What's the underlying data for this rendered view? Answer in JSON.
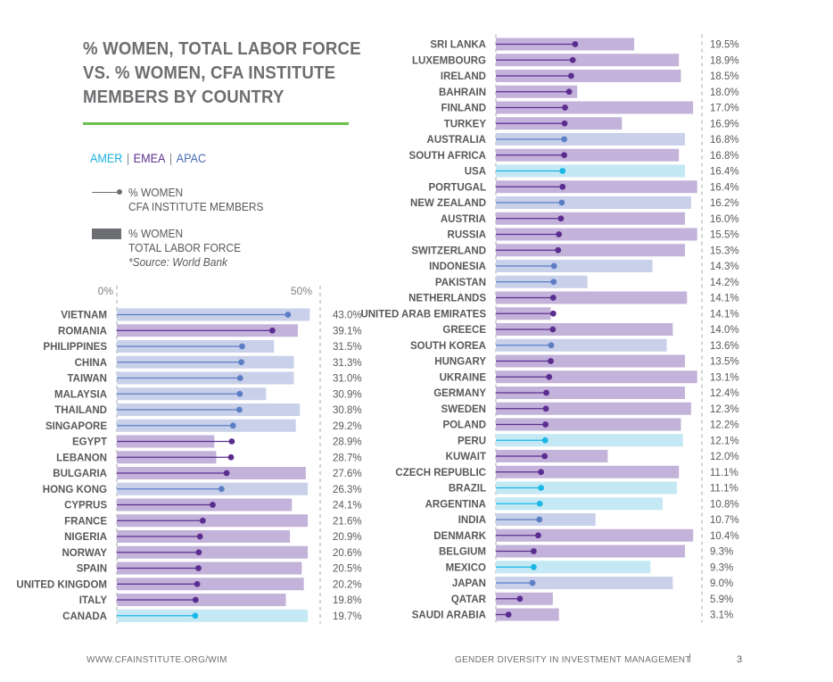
{
  "header": {
    "title_lines": [
      "% WOMEN, TOTAL LABOR FORCE",
      "VS. % WOMEN, CFA INSTITUTE",
      "MEMBERS BY COUNTRY"
    ]
  },
  "regions": {
    "items": [
      {
        "label": "AMER",
        "color": "#1bb0dd"
      },
      {
        "label": "EMEA",
        "color": "#5c2d91"
      },
      {
        "label": "APAC",
        "color": "#4a6cb3"
      }
    ],
    "separator": "|"
  },
  "legend": {
    "members_line1": "% WOMEN",
    "members_line2": "CFA INSTITUTE MEMBERS",
    "labor_line1": "% WOMEN",
    "labor_line2": "TOTAL LABOR FORCE",
    "labor_source": "*Source: World Bank"
  },
  "colors": {
    "AMER": {
      "bar": "#c4e8f4",
      "line": "#1bb7e6"
    },
    "EMEA": {
      "bar": "#c3b2d9",
      "line": "#5c2d91"
    },
    "APAC": {
      "bar": "#c8d0ea",
      "line": "#5b7ec4"
    }
  },
  "chart_data": {
    "type": "bar",
    "title": "% WOMEN, TOTAL LABOR FORCE VS. % WOMEN, CFA INSTITUTE MEMBERS BY COUNTRY",
    "xlabel": "",
    "ylabel": "",
    "x_ticks": [
      "0%",
      "50%"
    ],
    "xlim": [
      0,
      50
    ],
    "grid": false,
    "legend_position": "top-left",
    "series_names": [
      "% Women CFA Institute Members (dot)",
      "% Women Total Labor Force (bar)"
    ],
    "panels": [
      {
        "countries": [
          {
            "name": "VIETNAM",
            "region": "APAC",
            "members": 43.0,
            "labor": 48.5
          },
          {
            "name": "ROMANIA",
            "region": "EMEA",
            "members": 39.1,
            "labor": 45.5
          },
          {
            "name": "PHILIPPINES",
            "region": "APAC",
            "members": 31.5,
            "labor": 39.5
          },
          {
            "name": "CHINA",
            "region": "APAC",
            "members": 31.3,
            "labor": 44.5
          },
          {
            "name": "TAIWAN",
            "region": "APAC",
            "members": 31.0,
            "labor": 44.5
          },
          {
            "name": "MALAYSIA",
            "region": "APAC",
            "members": 30.9,
            "labor": 37.5
          },
          {
            "name": "THAILAND",
            "region": "APAC",
            "members": 30.8,
            "labor": 46.0
          },
          {
            "name": "SINGAPORE",
            "region": "APAC",
            "members": 29.2,
            "labor": 45.0
          },
          {
            "name": "EGYPT",
            "region": "EMEA",
            "members": 28.9,
            "labor": 24.5
          },
          {
            "name": "LEBANON",
            "region": "EMEA",
            "members": 28.7,
            "labor": 25.0
          },
          {
            "name": "BULGARIA",
            "region": "EMEA",
            "members": 27.6,
            "labor": 47.5
          },
          {
            "name": "HONG KONG",
            "region": "APAC",
            "members": 26.3,
            "labor": 48.0
          },
          {
            "name": "CYPRUS",
            "region": "EMEA",
            "members": 24.1,
            "labor": 44.0
          },
          {
            "name": "FRANCE",
            "region": "EMEA",
            "members": 21.6,
            "labor": 48.0
          },
          {
            "name": "NIGERIA",
            "region": "EMEA",
            "members": 20.9,
            "labor": 43.5
          },
          {
            "name": "NORWAY",
            "region": "EMEA",
            "members": 20.6,
            "labor": 48.0
          },
          {
            "name": "SPAIN",
            "region": "EMEA",
            "members": 20.5,
            "labor": 46.5
          },
          {
            "name": "UNITED KINGDOM",
            "region": "EMEA",
            "members": 20.2,
            "labor": 47.0
          },
          {
            "name": "ITALY",
            "region": "EMEA",
            "members": 19.8,
            "labor": 42.5
          },
          {
            "name": "CANADA",
            "region": "AMER",
            "members": 19.7,
            "labor": 48.0
          }
        ]
      },
      {
        "countries": [
          {
            "name": "SRI LANKA",
            "region": "EMEA",
            "members": 19.5,
            "labor": 34.0
          },
          {
            "name": "LUXEMBOURG",
            "region": "EMEA",
            "members": 18.9,
            "labor": 45.0
          },
          {
            "name": "IRELAND",
            "region": "EMEA",
            "members": 18.5,
            "labor": 45.5
          },
          {
            "name": "BAHRAIN",
            "region": "EMEA",
            "members": 18.0,
            "labor": 20.0
          },
          {
            "name": "FINLAND",
            "region": "EMEA",
            "members": 17.0,
            "labor": 48.5
          },
          {
            "name": "TURKEY",
            "region": "EMEA",
            "members": 16.9,
            "labor": 31.0
          },
          {
            "name": "AUSTRALIA",
            "region": "APAC",
            "members": 16.8,
            "labor": 46.5
          },
          {
            "name": "SOUTH AFRICA",
            "region": "EMEA",
            "members": 16.8,
            "labor": 45.0
          },
          {
            "name": "USA",
            "region": "AMER",
            "members": 16.4,
            "labor": 46.5
          },
          {
            "name": "PORTUGAL",
            "region": "EMEA",
            "members": 16.4,
            "labor": 49.5
          },
          {
            "name": "NEW ZEALAND",
            "region": "APAC",
            "members": 16.2,
            "labor": 48.0
          },
          {
            "name": "AUSTRIA",
            "region": "EMEA",
            "members": 16.0,
            "labor": 46.5
          },
          {
            "name": "RUSSIA",
            "region": "EMEA",
            "members": 15.5,
            "labor": 49.5
          },
          {
            "name": "SWITZERLAND",
            "region": "EMEA",
            "members": 15.3,
            "labor": 46.5
          },
          {
            "name": "INDONESIA",
            "region": "APAC",
            "members": 14.3,
            "labor": 38.5
          },
          {
            "name": "PAKISTAN",
            "region": "APAC",
            "members": 14.2,
            "labor": 22.5
          },
          {
            "name": "NETHERLANDS",
            "region": "EMEA",
            "members": 14.1,
            "labor": 47.0
          },
          {
            "name": "UNITED ARAB EMIRATES",
            "region": "EMEA",
            "members": 14.1,
            "labor": 13.5
          },
          {
            "name": "GREECE",
            "region": "EMEA",
            "members": 14.0,
            "labor": 43.5
          },
          {
            "name": "SOUTH KOREA",
            "region": "APAC",
            "members": 13.6,
            "labor": 42.0
          },
          {
            "name": "HUNGARY",
            "region": "EMEA",
            "members": 13.5,
            "labor": 46.5
          },
          {
            "name": "UKRAINE",
            "region": "EMEA",
            "members": 13.1,
            "labor": 49.5
          },
          {
            "name": "GERMANY",
            "region": "EMEA",
            "members": 12.4,
            "labor": 46.5
          },
          {
            "name": "SWEDEN",
            "region": "EMEA",
            "members": 12.3,
            "labor": 48.0
          },
          {
            "name": "POLAND",
            "region": "EMEA",
            "members": 12.2,
            "labor": 45.5
          },
          {
            "name": "PERU",
            "region": "AMER",
            "members": 12.1,
            "labor": 46.0
          },
          {
            "name": "KUWAIT",
            "region": "EMEA",
            "members": 12.0,
            "labor": 27.5
          },
          {
            "name": "CZECH REPUBLIC",
            "region": "EMEA",
            "members": 11.1,
            "labor": 45.0
          },
          {
            "name": "BRAZIL",
            "region": "AMER",
            "members": 11.1,
            "labor": 44.5
          },
          {
            "name": "ARGENTINA",
            "region": "AMER",
            "members": 10.8,
            "labor": 41.0
          },
          {
            "name": "INDIA",
            "region": "APAC",
            "members": 10.7,
            "labor": 24.5
          },
          {
            "name": "DENMARK",
            "region": "EMEA",
            "members": 10.4,
            "labor": 48.5
          },
          {
            "name": "BELGIUM",
            "region": "EMEA",
            "members": 9.3,
            "labor": 46.5
          },
          {
            "name": "MEXICO",
            "region": "AMER",
            "members": 9.3,
            "labor": 38.0
          },
          {
            "name": "JAPAN",
            "region": "APAC",
            "members": 9.0,
            "labor": 43.5
          },
          {
            "name": "QATAR",
            "region": "EMEA",
            "members": 5.9,
            "labor": 14.0
          },
          {
            "name": "SAUDI ARABIA",
            "region": "EMEA",
            "members": 3.1,
            "labor": 15.5
          }
        ]
      }
    ]
  },
  "footer": {
    "url": "WWW.CFAINSTITUTE.ORG/WIM",
    "publication": "GENDER DIVERSITY IN INVESTMENT MANAGEMENT",
    "page_number": "3"
  }
}
